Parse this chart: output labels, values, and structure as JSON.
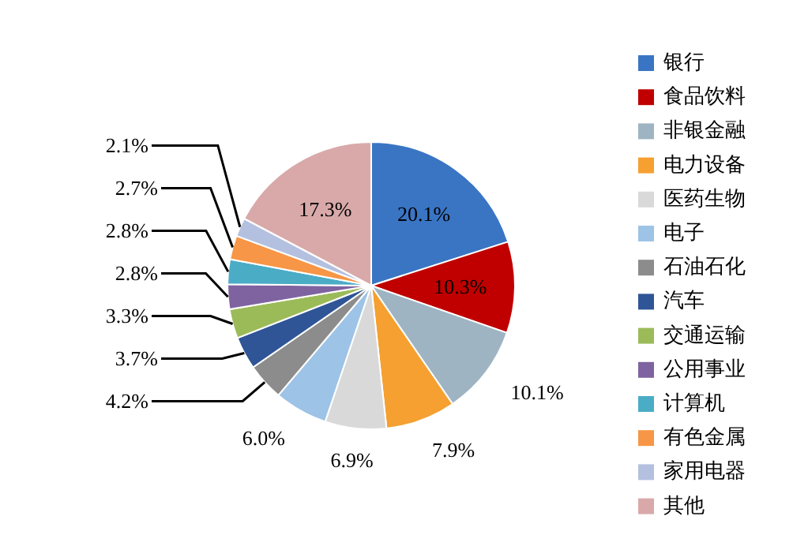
{
  "chart_data": {
    "type": "pie",
    "legend": "right",
    "categories": [
      "银行",
      "食品饮料",
      "非银金融",
      "电力设备",
      "医药生物",
      "电子",
      "石油石化",
      "汽车",
      "交通运输",
      "公用事业",
      "计算机",
      "有色金属",
      "家用电器",
      "其他"
    ],
    "values": [
      20.1,
      10.3,
      10.1,
      7.9,
      6.9,
      6.0,
      4.2,
      3.7,
      3.3,
      2.8,
      2.8,
      2.7,
      2.1,
      17.3
    ],
    "value_labels": [
      "20.1%",
      "10.3%",
      "10.1%",
      "7.9%",
      "6.9%",
      "6.0%",
      "4.2%",
      "3.7%",
      "3.3%",
      "2.8%",
      "2.8%",
      "2.7%",
      "2.1%",
      "17.3%"
    ],
    "colors": [
      "#3a75c4",
      "#c00000",
      "#9fb4c3",
      "#f5a030",
      "#d9d9d9",
      "#9dc3e6",
      "#8c8c8c",
      "#2f5597",
      "#9bbb59",
      "#7f63a0",
      "#4bacc6",
      "#f79646",
      "#b4c0e0",
      "#d9a9a9"
    ]
  }
}
